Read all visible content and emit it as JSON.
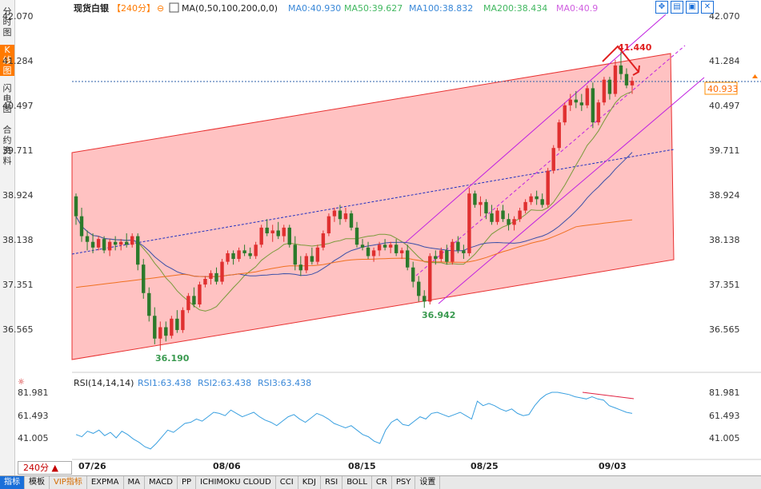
{
  "left_tabs": [
    {
      "label": "分时图",
      "active": false
    },
    {
      "label": "K线图",
      "active": true
    },
    {
      "label": "闪电图",
      "active": false
    },
    {
      "label": "合约资料",
      "active": false
    }
  ],
  "header": {
    "instrument": "现货白银",
    "period_tag": "【240分】",
    "ma_label": "MA(0,50,100,200,0,0)",
    "ma0": "MA0:40.930",
    "ma50": "MA50:39.627",
    "ma100": "MA100:38.832",
    "ma200": "MA200:38.434",
    "ma0b": "MA0:40.9"
  },
  "tool_icons": [
    "expand-icon",
    "window-icon",
    "restore-icon",
    "close-icon"
  ],
  "price_axis": {
    "left_ticks": [
      "42.070",
      "41.284",
      "40.497",
      "39.711",
      "38.924",
      "38.138",
      "37.351",
      "36.565"
    ],
    "right_ticks": [
      "42.070",
      "41.284",
      "40.497",
      "39.711",
      "38.924",
      "38.138",
      "37.351",
      "36.565"
    ],
    "current_price": "40.933"
  },
  "annotations": {
    "high": "41.440",
    "low1": "36.190",
    "low2": "36.942"
  },
  "rsi": {
    "title": "RSI(14,14,14)",
    "rsi1": "RSI1:63.438",
    "rsi2": "RSI2:63.438",
    "rsi3": "RSI3:63.438",
    "ticks": [
      "81.981",
      "61.493",
      "41.005"
    ]
  },
  "date_axis": [
    "07/26",
    "08/06",
    "08/15",
    "08/25",
    "09/03"
  ],
  "period_selector": "240分",
  "toolbar": [
    "指标",
    "模板",
    "VIP指标",
    "EXPMA",
    "MA",
    "MACD",
    "PP",
    "ICHIMOKU CLOUD",
    "CCI",
    "KDJ",
    "RSI",
    "BOLL",
    "CR",
    "PSY",
    "设置"
  ],
  "colors": {
    "up": "#e03030",
    "down": "#2b7a2b",
    "channel": "#ffc2c2",
    "ma_fast": "#7a9a3a",
    "ma_mid": "#3a4fa8",
    "ma_slow": "#f07020",
    "rsi": "#3aa0e0"
  },
  "chart_data": [
    {
      "type": "candlestick",
      "title": "现货白银【240分】",
      "x": [
        "07/26",
        "08/06",
        "08/15",
        "08/25",
        "09/03"
      ],
      "ylim": [
        36.0,
        42.2
      ],
      "points": [
        [
          38.9,
          38.95,
          38.4,
          38.55
        ],
        [
          38.55,
          38.7,
          38.1,
          38.2
        ],
        [
          38.2,
          38.3,
          37.95,
          38.1
        ],
        [
          38.1,
          38.25,
          37.9,
          38.0
        ],
        [
          38.0,
          38.2,
          37.95,
          38.15
        ],
        [
          38.15,
          38.2,
          37.9,
          37.95
        ],
        [
          37.95,
          38.15,
          37.85,
          38.1
        ],
        [
          38.1,
          38.2,
          37.95,
          38.05
        ],
        [
          38.05,
          38.15,
          37.95,
          38.1
        ],
        [
          38.1,
          38.25,
          38.0,
          38.05
        ],
        [
          38.05,
          38.25,
          38.0,
          38.2
        ],
        [
          38.2,
          38.25,
          37.6,
          37.7
        ],
        [
          37.7,
          37.8,
          37.1,
          37.2
        ],
        [
          37.2,
          37.3,
          36.7,
          36.8
        ],
        [
          36.8,
          36.95,
          36.3,
          36.4
        ],
        [
          36.4,
          36.7,
          36.19,
          36.6
        ],
        [
          36.6,
          36.7,
          36.35,
          36.45
        ],
        [
          36.45,
          36.8,
          36.4,
          36.75
        ],
        [
          36.75,
          36.9,
          36.5,
          36.55
        ],
        [
          36.55,
          36.95,
          36.5,
          36.9
        ],
        [
          36.9,
          37.2,
          36.85,
          37.15
        ],
        [
          37.15,
          37.3,
          36.95,
          37.0
        ],
        [
          37.0,
          37.4,
          36.95,
          37.35
        ],
        [
          37.35,
          37.5,
          37.3,
          37.45
        ],
        [
          37.45,
          37.6,
          37.35,
          37.55
        ],
        [
          37.55,
          37.65,
          37.35,
          37.4
        ],
        [
          37.4,
          37.8,
          37.35,
          37.75
        ],
        [
          37.75,
          37.95,
          37.7,
          37.9
        ],
        [
          37.9,
          37.95,
          37.7,
          37.8
        ],
        [
          37.8,
          38.0,
          37.75,
          37.95
        ],
        [
          37.95,
          38.05,
          37.85,
          37.9
        ],
        [
          37.9,
          38.0,
          37.8,
          37.85
        ],
        [
          37.85,
          38.1,
          37.8,
          38.05
        ],
        [
          38.05,
          38.4,
          38.0,
          38.35
        ],
        [
          38.35,
          38.5,
          38.2,
          38.25
        ],
        [
          38.25,
          38.4,
          38.1,
          38.3
        ],
        [
          38.3,
          38.45,
          38.15,
          38.2
        ],
        [
          38.2,
          38.4,
          38.1,
          38.35
        ],
        [
          38.35,
          38.4,
          38.0,
          38.05
        ],
        [
          38.05,
          38.2,
          37.6,
          37.7
        ],
        [
          37.7,
          37.85,
          37.5,
          37.6
        ],
        [
          37.6,
          37.9,
          37.55,
          37.85
        ],
        [
          37.85,
          38.0,
          37.7,
          37.75
        ],
        [
          37.75,
          38.05,
          37.7,
          38.0
        ],
        [
          38.0,
          38.3,
          37.95,
          38.25
        ],
        [
          38.25,
          38.6,
          38.2,
          38.55
        ],
        [
          38.55,
          38.7,
          38.45,
          38.65
        ],
        [
          38.65,
          38.75,
          38.4,
          38.5
        ],
        [
          38.5,
          38.7,
          38.45,
          38.6
        ],
        [
          38.6,
          38.65,
          38.3,
          38.35
        ],
        [
          38.35,
          38.45,
          38.0,
          38.05
        ],
        [
          38.05,
          38.15,
          37.95,
          38.0
        ],
        [
          38.0,
          38.1,
          37.8,
          37.85
        ],
        [
          37.85,
          38.0,
          37.75,
          37.95
        ],
        [
          37.95,
          38.1,
          37.85,
          38.05
        ],
        [
          38.05,
          38.15,
          37.95,
          38.0
        ],
        [
          38.0,
          38.1,
          37.9,
          38.05
        ],
        [
          38.05,
          38.15,
          37.85,
          37.9
        ],
        [
          37.9,
          38.0,
          37.8,
          37.95
        ],
        [
          37.95,
          38.05,
          37.6,
          37.65
        ],
        [
          37.65,
          37.75,
          37.3,
          37.4
        ],
        [
          37.4,
          37.5,
          37.05,
          37.15
        ],
        [
          37.15,
          37.25,
          36.94,
          37.05
        ],
        [
          37.05,
          37.9,
          37.0,
          37.85
        ],
        [
          37.85,
          37.95,
          37.7,
          37.8
        ],
        [
          37.8,
          38.0,
          37.75,
          37.95
        ],
        [
          37.95,
          38.05,
          37.7,
          37.75
        ],
        [
          37.75,
          38.15,
          37.7,
          38.1
        ],
        [
          38.1,
          38.2,
          37.9,
          37.95
        ],
        [
          37.95,
          38.05,
          37.8,
          37.9
        ],
        [
          37.9,
          39.05,
          37.85,
          38.95
        ],
        [
          38.95,
          39.0,
          38.7,
          38.75
        ],
        [
          38.75,
          38.9,
          38.55,
          38.8
        ],
        [
          38.8,
          38.85,
          38.5,
          38.6
        ],
        [
          38.6,
          38.75,
          38.4,
          38.45
        ],
        [
          38.45,
          38.7,
          38.4,
          38.65
        ],
        [
          38.65,
          38.75,
          38.45,
          38.5
        ],
        [
          38.5,
          38.6,
          38.3,
          38.4
        ],
        [
          38.4,
          38.55,
          38.3,
          38.5
        ],
        [
          38.5,
          38.7,
          38.45,
          38.65
        ],
        [
          38.65,
          38.85,
          38.6,
          38.8
        ],
        [
          38.8,
          38.95,
          38.75,
          38.9
        ],
        [
          38.9,
          39.0,
          38.75,
          38.85
        ],
        [
          38.85,
          38.95,
          38.7,
          38.75
        ],
        [
          38.75,
          39.4,
          38.7,
          39.35
        ],
        [
          39.35,
          39.8,
          39.3,
          39.75
        ],
        [
          39.75,
          40.25,
          39.7,
          40.2
        ],
        [
          40.2,
          40.55,
          40.15,
          40.5
        ],
        [
          40.5,
          40.7,
          40.4,
          40.6
        ],
        [
          40.6,
          40.75,
          40.45,
          40.55
        ],
        [
          40.55,
          40.7,
          40.4,
          40.5
        ],
        [
          40.5,
          40.85,
          40.45,
          40.8
        ],
        [
          40.8,
          40.9,
          40.1,
          40.2
        ],
        [
          40.2,
          40.6,
          40.15,
          40.55
        ],
        [
          40.55,
          41.0,
          40.5,
          40.95
        ],
        [
          40.95,
          41.0,
          40.6,
          40.7
        ],
        [
          40.7,
          41.3,
          40.65,
          41.2
        ],
        [
          41.2,
          41.44,
          40.95,
          41.05
        ],
        [
          41.05,
          41.15,
          40.8,
          40.85
        ],
        [
          40.85,
          41.0,
          40.7,
          40.93
        ]
      ],
      "annotations": [
        {
          "label": "41.440",
          "kind": "high"
        },
        {
          "label": "36.190",
          "kind": "low"
        },
        {
          "label": "36.942",
          "kind": "low"
        }
      ],
      "series": [
        {
          "name": "MA0",
          "value": 40.93
        },
        {
          "name": "MA50",
          "value": 39.627
        },
        {
          "name": "MA100",
          "value": 38.832
        },
        {
          "name": "MA200",
          "value": 38.434
        }
      ]
    },
    {
      "type": "line",
      "title": "RSI(14,14,14)",
      "ylim": [
        30,
        90
      ],
      "series": [
        {
          "name": "RSI1",
          "values": [
            44,
            42,
            47,
            45,
            48,
            43,
            46,
            41,
            47,
            44,
            40,
            37,
            33,
            31,
            36,
            42,
            48,
            46,
            50,
            54,
            55,
            58,
            56,
            60,
            64,
            63,
            61,
            66,
            63,
            60,
            62,
            64,
            60,
            57,
            55,
            52,
            56,
            60,
            62,
            58,
            55,
            59,
            63,
            61,
            58,
            54,
            52,
            50,
            52,
            48,
            44,
            42,
            38,
            36,
            48,
            55,
            58,
            53,
            52,
            56,
            60,
            58,
            63,
            64,
            62,
            60,
            62,
            64,
            61,
            58,
            74,
            70,
            72,
            70,
            67,
            65,
            67,
            63,
            61,
            62,
            70,
            76,
            80,
            82,
            82,
            81,
            80,
            78,
            77,
            76,
            78,
            76,
            75,
            70,
            68,
            66,
            64,
            63
          ]
        }
      ]
    }
  ]
}
